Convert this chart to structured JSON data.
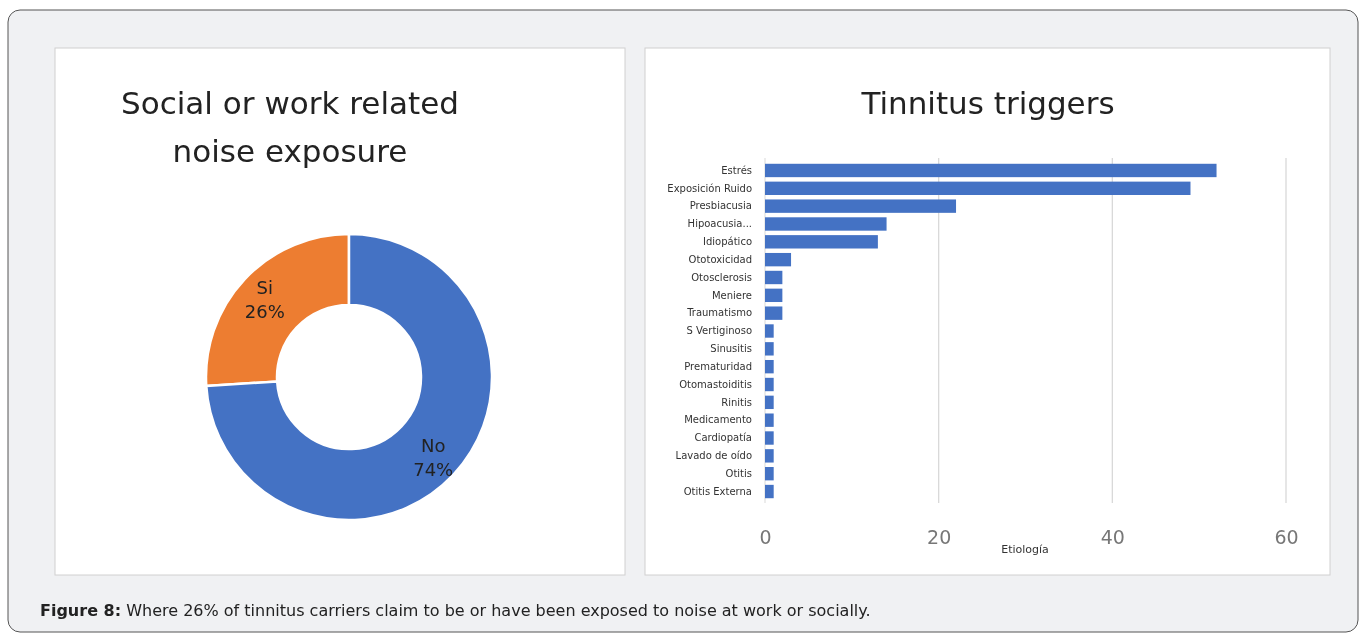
{
  "chart_data": [
    {
      "type": "donut",
      "title": "Social or work related noise exposure",
      "categories": [
        "Si",
        "No"
      ],
      "values": [
        26,
        74
      ],
      "colors": [
        "#ed7d31",
        "#4472c4"
      ],
      "value_labels": [
        "26%",
        "74%"
      ],
      "annotations": [
        "Figure 8: Where 26% of tinnitus carriers claim to be or have been exposed to noise at work or socially."
      ]
    },
    {
      "type": "bar",
      "orientation": "horizontal",
      "title": "Tinnitus triggers",
      "xlabel": "Etiología",
      "categories": [
        "Estrés",
        "Exposición Ruido",
        "Presbiacusia",
        "Hipoacusia...",
        "Idiopático",
        "Ototoxicidad",
        "Otosclerosis",
        "Meniere",
        "Traumatismo",
        "S Vertiginoso",
        "Sinusitis",
        "Prematuridad",
        "Otomastoiditis",
        "Rinitis",
        "Medicamento",
        "Cardiopatía",
        "Lavado de oído",
        "Otitis",
        "Otitis Externa"
      ],
      "values": [
        52,
        49,
        22,
        14,
        13,
        3,
        2,
        2,
        2,
        1,
        1,
        1,
        1,
        1,
        1,
        1,
        1,
        1,
        1
      ],
      "color": "#4472c4",
      "xlim": [
        0,
        60
      ],
      "xticks": [
        0,
        20,
        40,
        60
      ],
      "grid": "x"
    }
  ]
}
